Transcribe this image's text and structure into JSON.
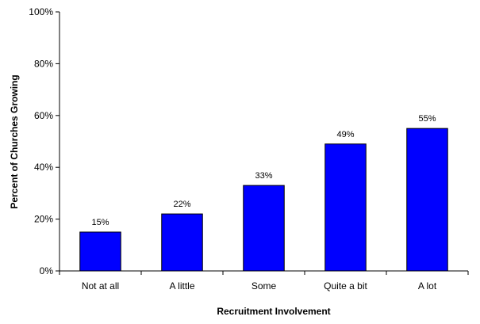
{
  "chart_data": {
    "type": "bar",
    "title": "",
    "xlabel": "Recruitment Involvement",
    "ylabel": "Percent of Churches Growing",
    "categories": [
      "Not at all",
      "A little",
      "Some",
      "Quite a bit",
      "A lot"
    ],
    "values": [
      15,
      22,
      33,
      49,
      55
    ],
    "data_labels": [
      "15%",
      "22%",
      "33%",
      "49%",
      "55%"
    ],
    "ylim": [
      0,
      100
    ],
    "y_ticks": [
      0,
      20,
      40,
      60,
      80,
      100
    ],
    "y_tick_labels": [
      "0%",
      "20%",
      "40%",
      "60%",
      "80%",
      "100%"
    ],
    "grid": false,
    "legend": "none",
    "bar_color": "#0000FF",
    "bar_edge_color": "#000000"
  }
}
